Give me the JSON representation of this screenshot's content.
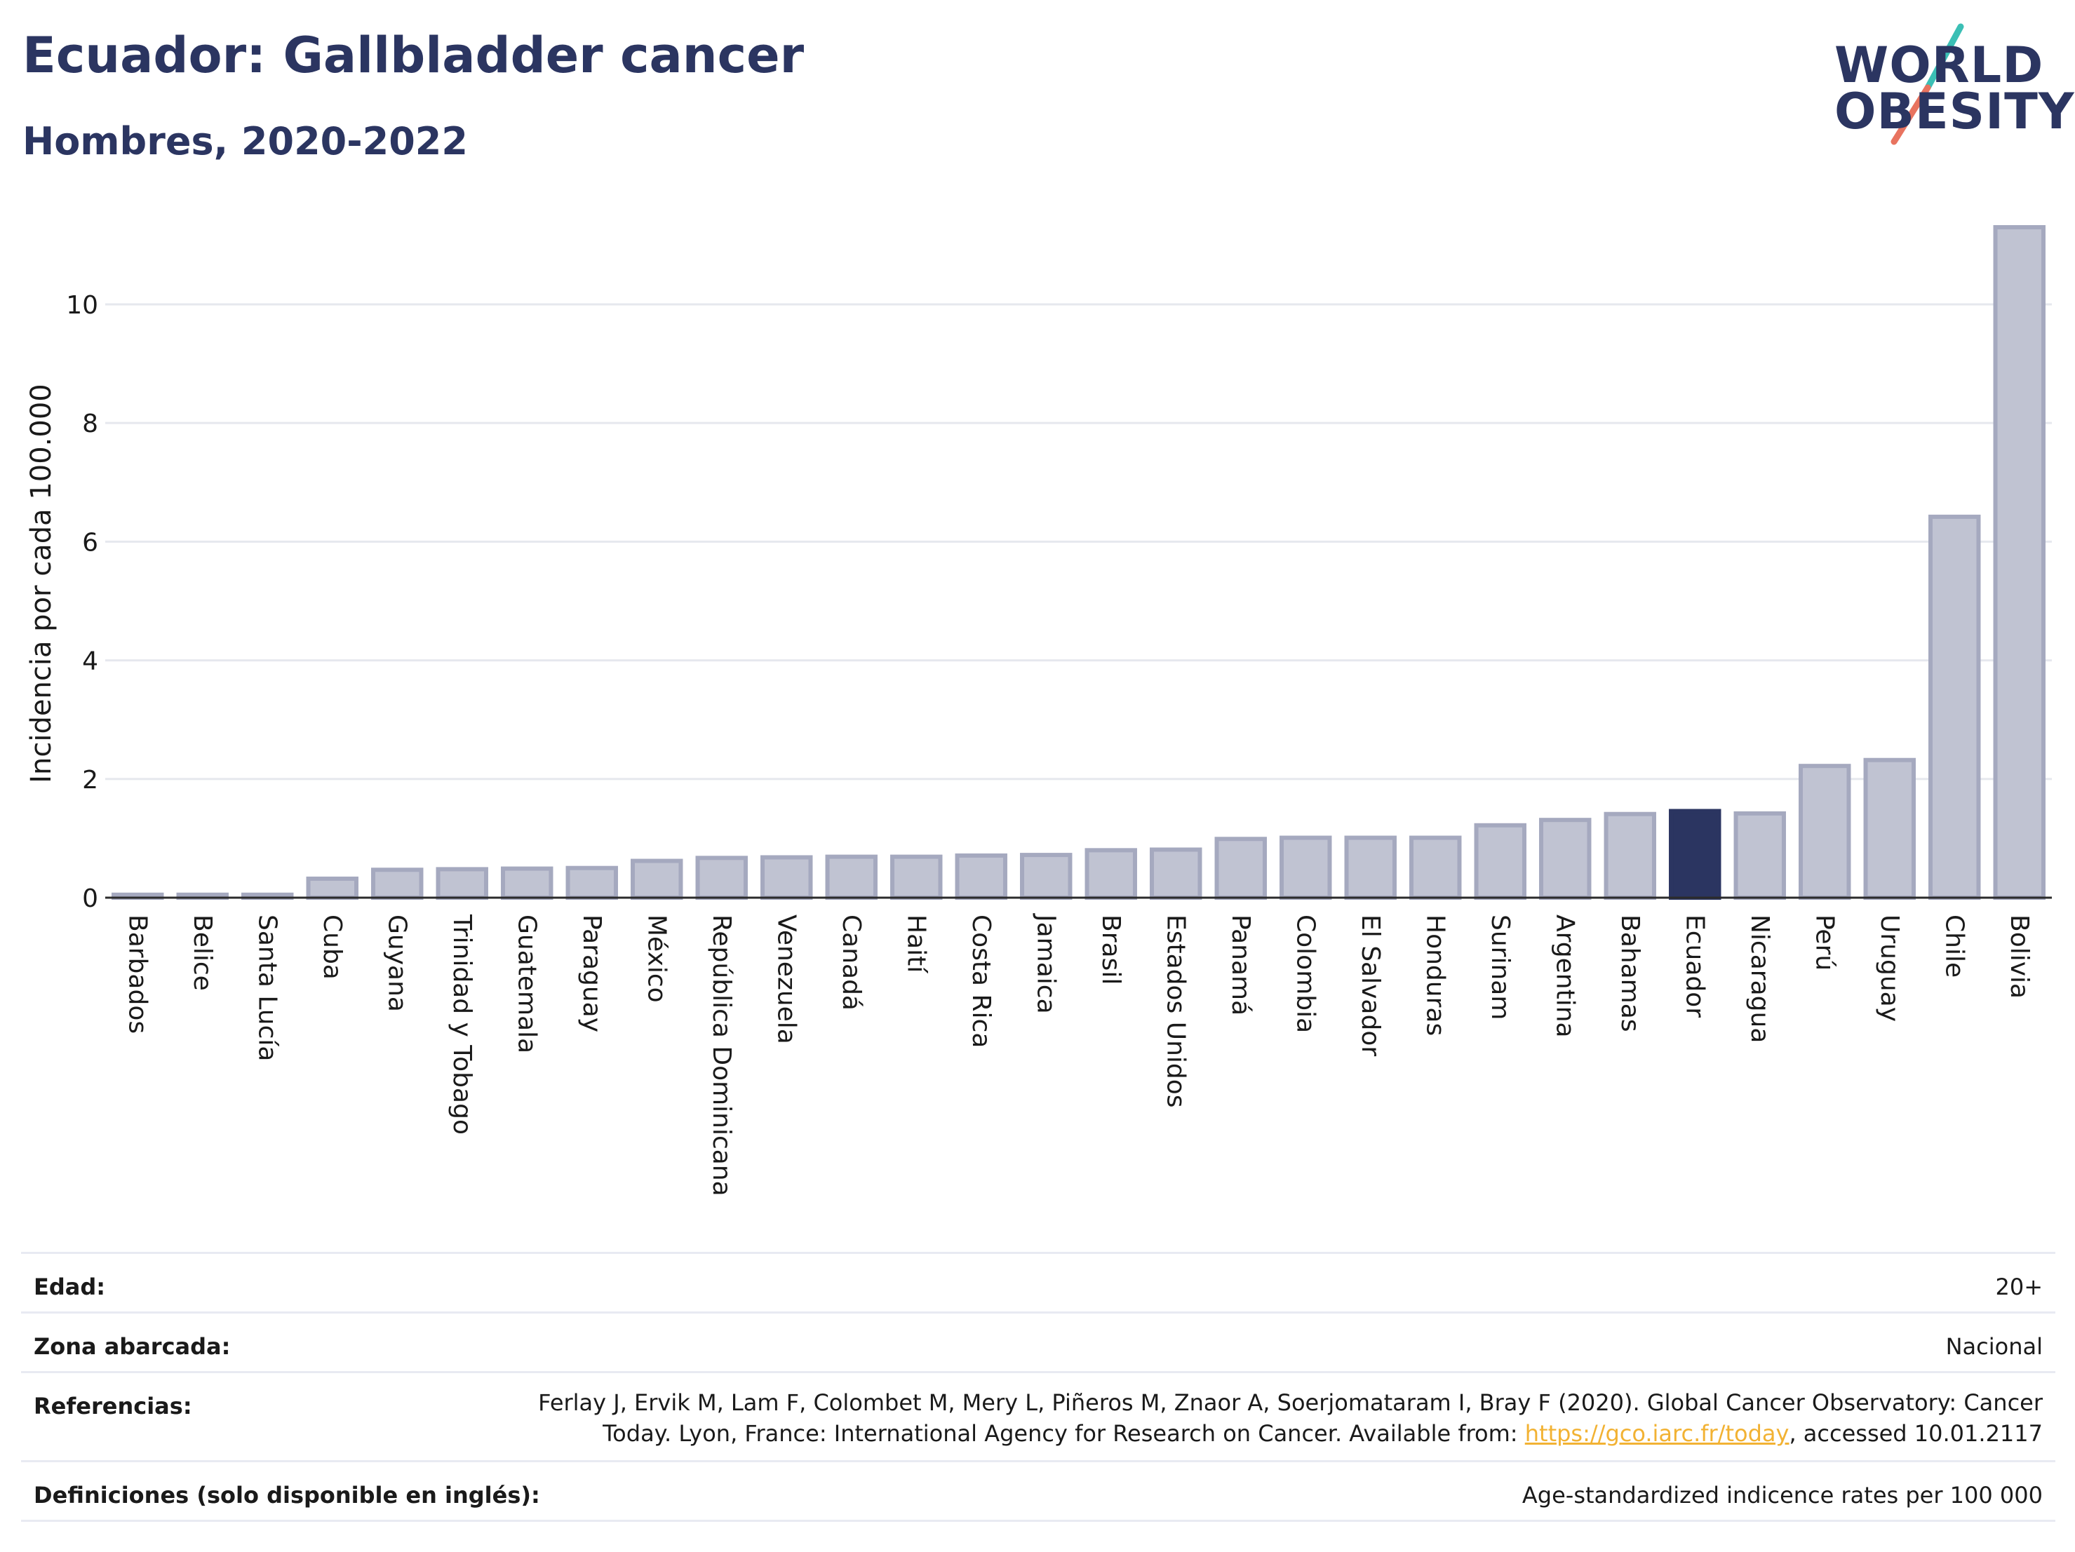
{
  "header": {
    "title": "Ecuador: Gallbladder cancer",
    "subtitle": "Hombres, 2020-2022"
  },
  "logo": {
    "line1": "WORLD",
    "line2": "OBESITY"
  },
  "colors": {
    "bar": "#c0c3d2",
    "bar_border": "#a5a9bf",
    "highlight": "#2b3561",
    "grid": "#e6e8ee",
    "text": "#2b3561",
    "logo_slash_teal": "#3bbfb5",
    "logo_slash_coral": "#e8735f"
  },
  "chart_data": {
    "type": "bar",
    "ylabel": "Incidencia por cada 100.000",
    "ylim": [
      0,
      11.3
    ],
    "yticks": [
      0,
      2,
      4,
      6,
      8,
      10
    ],
    "highlight": "Ecuador",
    "categories": [
      "Barbados",
      "Belice",
      "Santa Lucía",
      "Cuba",
      "Guyana",
      "Trinidad y Tobago",
      "Guatemala",
      "Paraguay",
      "México",
      "República Dominicana",
      "Venezuela",
      "Canadá",
      "Haití",
      "Costa Rica",
      "Jamaica",
      "Brasil",
      "Estados Unidos",
      "Panamá",
      "Colombia",
      "El Salvador",
      "Honduras",
      "Surinam",
      "Argentina",
      "Bahamas",
      "Ecuador",
      "Nicaragua",
      "Perú",
      "Uruguay",
      "Chile",
      "Bolivia"
    ],
    "values": [
      0.05,
      0.05,
      0.05,
      0.32,
      0.47,
      0.48,
      0.49,
      0.5,
      0.62,
      0.67,
      0.68,
      0.69,
      0.69,
      0.71,
      0.72,
      0.8,
      0.81,
      0.99,
      1.01,
      1.01,
      1.01,
      1.22,
      1.31,
      1.41,
      1.46,
      1.42,
      2.22,
      2.32,
      6.42,
      11.3
    ]
  },
  "meta": {
    "edad_label": "Edad:",
    "edad_value": "20+",
    "zona_label": "Zona abarcada:",
    "zona_value": "Nacional",
    "ref_label": "Referencias:",
    "ref_line1": "Ferlay J, Ervik M, Lam F, Colombet M, Mery L, Piñeros M, Znaor A, Soerjomataram I, Bray F (2020). Global Cancer Observatory: Cancer",
    "ref_line2_pre": "Today. Lyon, France: International Agency for Research on Cancer. Available from: ",
    "ref_link": "https://gco.iarc.fr/today",
    "ref_line2_post": ", accessed 10.01.2117",
    "def_label": "Definiciones (solo disponible en inglés):",
    "def_value": "Age-standardized indicence rates per 100 000"
  }
}
